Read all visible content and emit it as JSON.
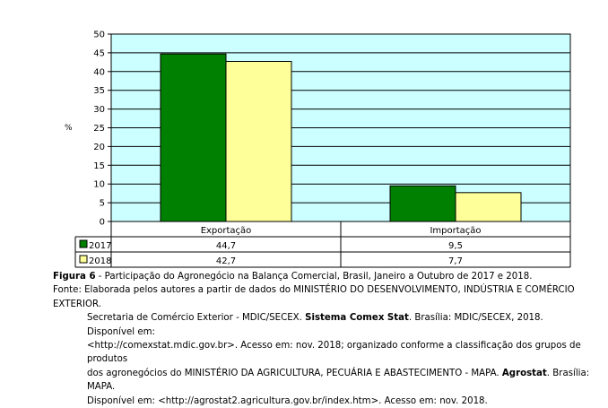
{
  "chart_data": {
    "type": "bar",
    "categories": [
      "Exportação",
      "Importação"
    ],
    "series": [
      {
        "name": "2017",
        "values": [
          44.7,
          9.5
        ],
        "labels": [
          "44,7",
          "9,5"
        ],
        "color": "#008000"
      },
      {
        "name": "2018",
        "values": [
          42.7,
          7.7
        ],
        "labels": [
          "42,7",
          "7,7"
        ],
        "color": "#ffff99"
      }
    ],
    "ylabel": "%",
    "ylim": [
      0,
      50
    ],
    "yticks": [
      0,
      5,
      10,
      15,
      20,
      25,
      30,
      35,
      40,
      45,
      50
    ],
    "grid": true,
    "plot_background": "#ccffff",
    "legend": "data-table"
  },
  "caption": {
    "figure_label": "Figura 6",
    "figure_title": " - Participação do Agronegócio na Balança Comercial, Brasil, Janeiro a Outubro de 2017 e 2018.",
    "source_prefix": "Fonte: Elaborada pelos autores a partir de dados do MINISTÉRIO DO DESENVOLVIMENTO, INDÚSTRIA E COMÉRCIO EXTERIOR.",
    "source_l2a": "Secretaria de Comércio Exterior - MDIC/SECEX. ",
    "source_l2b": "Sistema Comex Stat",
    "source_l2c": ". Brasília: MDIC/SECEX, 2018. Disponível em:",
    "source_l3": "<http://comexstat.mdic.gov.br>. Acesso em: nov. 2018; organizado conforme a classificação dos grupos de produtos",
    "source_l4a": "dos agronegócios do MINISTÉRIO DA AGRICULTURA, PECUÁRIA E ABASTECIMENTO - MAPA. ",
    "source_l4b": "Agrostat",
    "source_l4c": ". Brasília: MAPA.",
    "source_l5": "Disponível em: <http://agrostat2.agricultura.gov.br/index.htm>. Acesso em: nov. 2018."
  }
}
